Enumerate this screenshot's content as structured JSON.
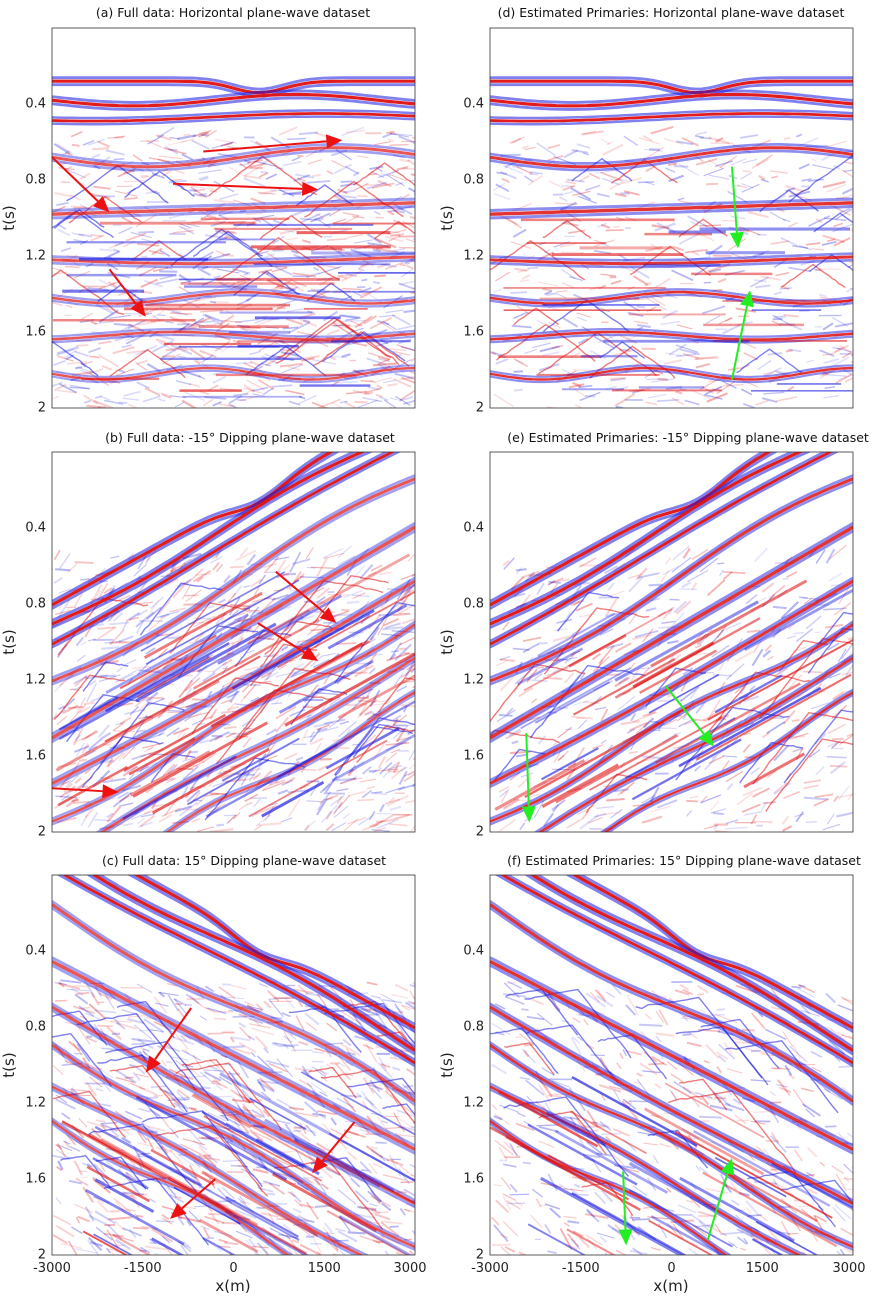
{
  "colors": {
    "positive": "#e01010",
    "negative": "#1818e0",
    "arrow_full": "#ee1111",
    "arrow_primaries": "#22ee22",
    "frame": "#333333"
  },
  "axes": {
    "x_label": "x(m)",
    "y_label": "t(s)",
    "x_ticks": [
      "-3000",
      "-1500",
      "0",
      "1500",
      "3000"
    ],
    "y_ticks": [
      "0.4",
      "0.8",
      "1.2",
      "1.6",
      "2"
    ],
    "x_range": [
      -3000,
      3000
    ],
    "t_range": [
      0.0,
      2.0
    ]
  },
  "panels": [
    {
      "id": "a",
      "title": "(a) Full data: Horizontal plane-wave dataset",
      "dip": 0,
      "kind": "full"
    },
    {
      "id": "d",
      "title": "(d) Estimated Primaries: Horizontal plane-wave dataset",
      "dip": 0,
      "kind": "primaries"
    },
    {
      "id": "b",
      "title": "(b) Full data: -15° Dipping plane-wave dataset",
      "dip": -15,
      "kind": "full"
    },
    {
      "id": "e",
      "title": "(e) Estimated Primaries: -15° Dipping plane-wave dataset",
      "dip": -15,
      "kind": "primaries"
    },
    {
      "id": "c",
      "title": "(c) Full data: 15° Dipping plane-wave dataset",
      "dip": 15,
      "kind": "full"
    },
    {
      "id": "f",
      "title": "(f) Estimated Primaries: 15° Dipping plane-wave dataset",
      "dip": 15,
      "kind": "primaries"
    }
  ],
  "annotations": {
    "a": [
      [
        -3000,
        0.68,
        -2050,
        0.97
      ],
      [
        -1000,
        0.82,
        1400,
        0.85
      ],
      [
        -500,
        0.65,
        1800,
        0.59
      ],
      [
        -2050,
        1.27,
        -1450,
        1.52
      ]
    ],
    "b": [
      [
        -3000,
        1.77,
        -1900,
        1.79
      ],
      [
        700,
        0.63,
        1700,
        0.9
      ],
      [
        400,
        0.9,
        1400,
        1.1
      ]
    ],
    "c": [
      [
        -700,
        0.7,
        -1450,
        1.04
      ],
      [
        2000,
        1.3,
        1300,
        1.57
      ],
      [
        -300,
        1.6,
        -1050,
        1.81
      ]
    ],
    "d": [
      [
        1000,
        0.73,
        1100,
        1.16
      ],
      [
        1000,
        1.85,
        1300,
        1.38
      ]
    ],
    "e": [
      [
        -2400,
        1.48,
        -2350,
        1.95
      ],
      [
        -100,
        1.23,
        700,
        1.55
      ]
    ],
    "f": [
      [
        -800,
        1.56,
        -750,
        1.95
      ],
      [
        600,
        1.92,
        1000,
        1.49
      ]
    ]
  },
  "chart_data": [
    {
      "type": "heatmap",
      "panel": "a",
      "title": "(a) Full data: Horizontal plane-wave dataset",
      "xlabel": "",
      "ylabel": "t(s)",
      "xlim": [
        -3000,
        3000
      ],
      "ylim": [
        2,
        0
      ]
    },
    {
      "type": "heatmap",
      "panel": "d",
      "title": "(d) Estimated Primaries: Horizontal plane-wave dataset",
      "xlabel": "",
      "ylabel": "t(s)",
      "xlim": [
        -3000,
        3000
      ],
      "ylim": [
        2,
        0
      ]
    },
    {
      "type": "heatmap",
      "panel": "b",
      "title": "(b) Full data: -15° Dipping plane-wave dataset",
      "xlabel": "",
      "ylabel": "t(s)",
      "xlim": [
        -3000,
        3000
      ],
      "ylim": [
        2,
        0
      ]
    },
    {
      "type": "heatmap",
      "panel": "e",
      "title": "(e) Estimated Primaries: -15° Dipping plane-wave dataset",
      "xlabel": "",
      "ylabel": "t(s)",
      "xlim": [
        -3000,
        3000
      ],
      "ylim": [
        2,
        0
      ]
    },
    {
      "type": "heatmap",
      "panel": "c",
      "title": "(c) Full data: 15° Dipping plane-wave dataset",
      "xlabel": "x(m)",
      "ylabel": "t(s)",
      "xlim": [
        -3000,
        3000
      ],
      "ylim": [
        2,
        0
      ]
    },
    {
      "type": "heatmap",
      "panel": "f",
      "title": "(f) Estimated Primaries: 15° Dipping plane-wave dataset",
      "xlabel": "x(m)",
      "ylabel": "t(s)",
      "xlim": [
        -3000,
        3000
      ],
      "ylim": [
        2,
        0
      ]
    }
  ]
}
